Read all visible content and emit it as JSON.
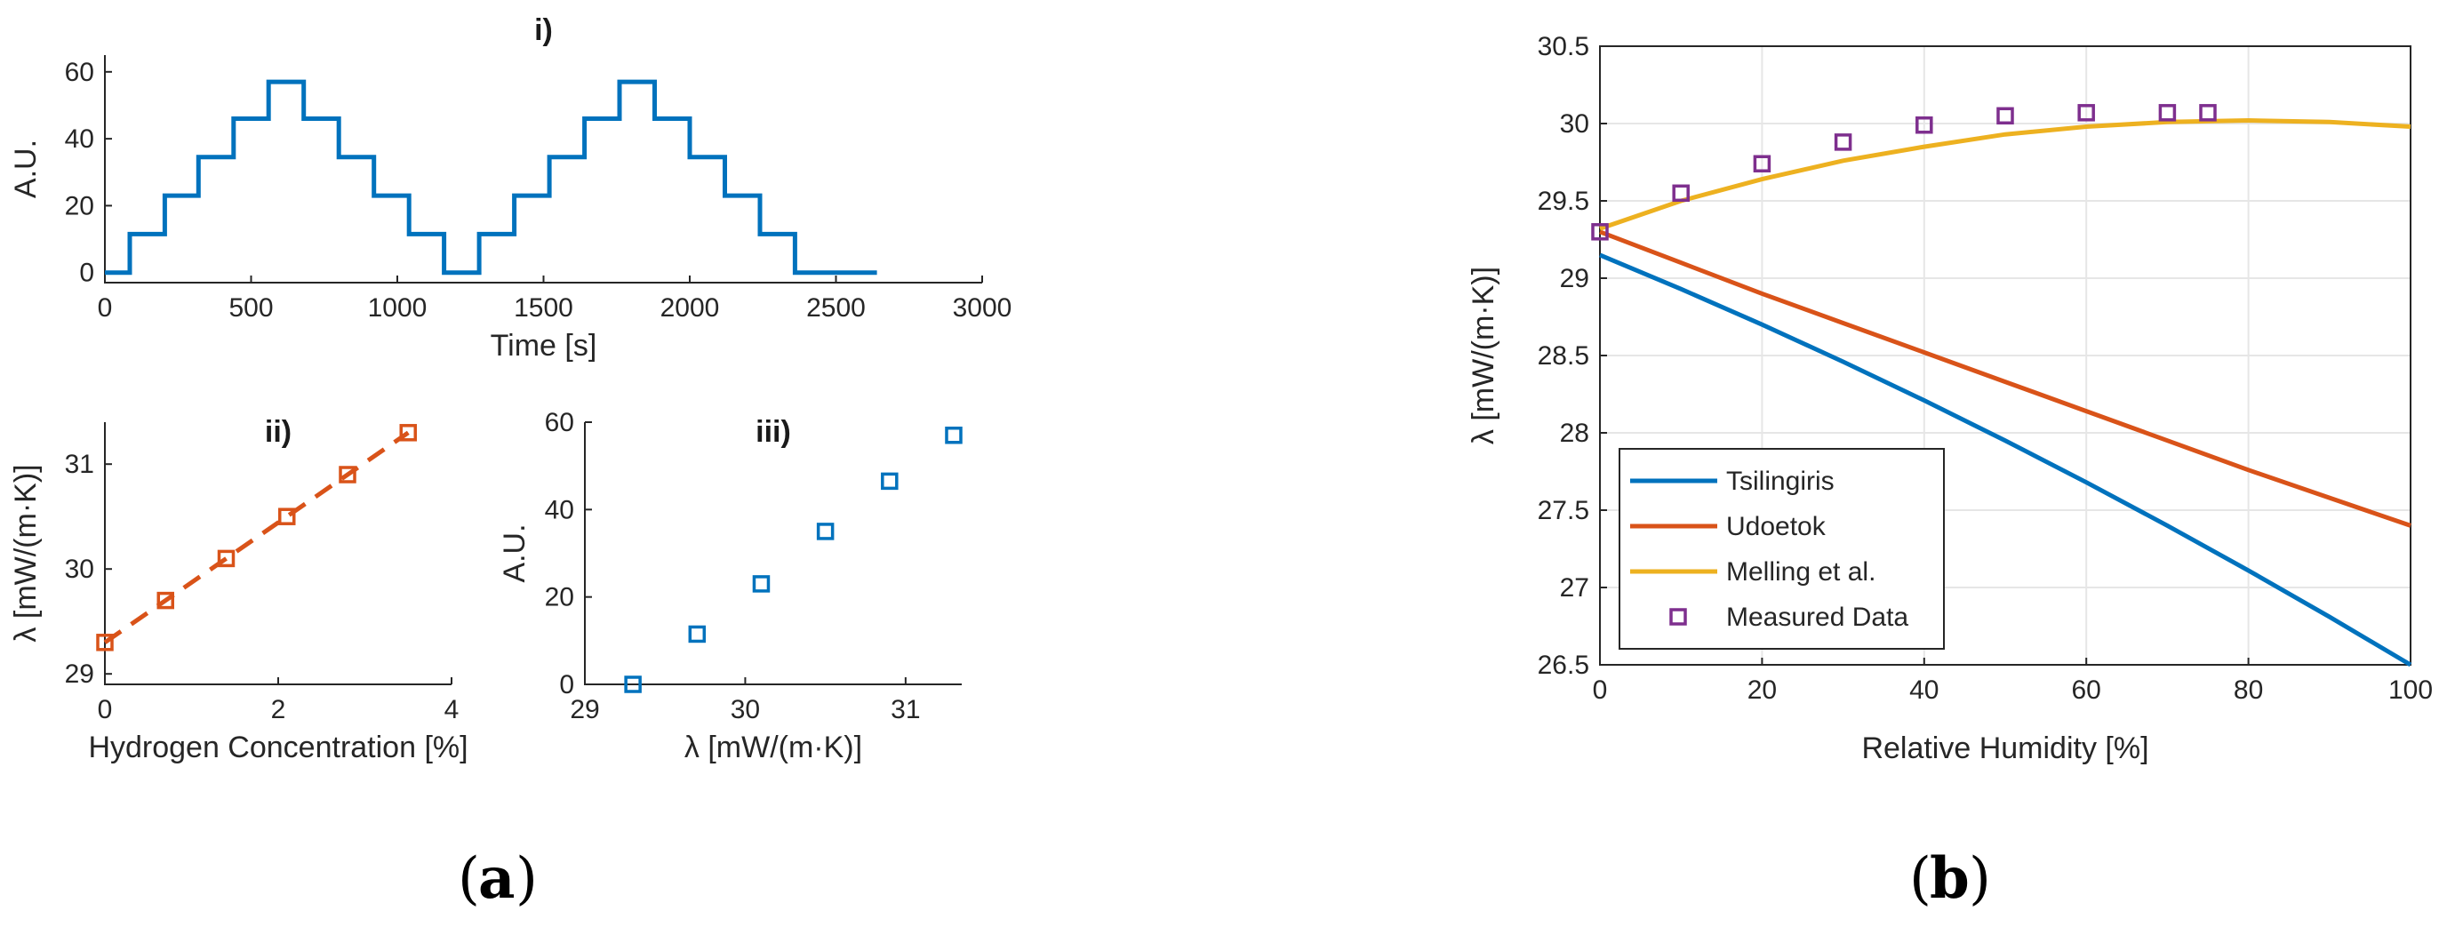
{
  "captions": {
    "a": "a",
    "b": "b"
  },
  "colors": {
    "blue": "#0072BD",
    "orange": "#D95319",
    "yellow": "#EDB120",
    "purple": "#7E2F8E"
  },
  "chart_data": [
    {
      "id": "i",
      "type": "line",
      "title": "i)",
      "xlabel": "Time [s]",
      "ylabel": "A.U.",
      "xlim": [
        0,
        3000
      ],
      "ylim": [
        -3,
        65
      ],
      "xticks": [
        0,
        500,
        1000,
        1500,
        2000,
        2500,
        3000
      ],
      "yticks": [
        0,
        20,
        40,
        60
      ],
      "grid": false,
      "series": [
        {
          "name": "A.U.",
          "color": "#0072BD",
          "x": [
            0,
            85,
            85,
            205,
            205,
            320,
            320,
            440,
            440,
            560,
            560,
            680,
            680,
            800,
            800,
            920,
            920,
            1040,
            1040,
            1160,
            1160,
            1280,
            1280,
            1400,
            1400,
            1520,
            1520,
            1640,
            1640,
            1760,
            1760,
            1880,
            1880,
            2000,
            2000,
            2120,
            2120,
            2240,
            2240,
            2360,
            2360,
            2640
          ],
          "y": [
            0,
            0,
            11.5,
            11.5,
            23,
            23,
            34.5,
            34.5,
            46,
            46,
            57,
            57,
            46,
            46,
            34.5,
            34.5,
            23,
            23,
            11.5,
            11.5,
            0,
            0,
            11.5,
            11.5,
            23,
            23,
            34.5,
            34.5,
            46,
            46,
            57,
            57,
            46,
            46,
            34.5,
            34.5,
            23,
            23,
            11.5,
            11.5,
            0,
            0
          ]
        }
      ]
    },
    {
      "id": "ii",
      "type": "scatter",
      "title": "ii)",
      "xlabel": "Hydrogen Concentration [%]",
      "ylabel": "λ [mW/(m·K)]",
      "xlim": [
        0,
        4
      ],
      "ylim": [
        28.9,
        31.4
      ],
      "xticks": [
        0,
        2,
        4
      ],
      "yticks": [
        29,
        30,
        31
      ],
      "grid": false,
      "series": [
        {
          "name": "Measured",
          "color": "#D95319",
          "marker": "square",
          "x": [
            0,
            0.7,
            1.4,
            2.1,
            2.8,
            3.5
          ],
          "y": [
            29.3,
            29.7,
            30.1,
            30.5,
            30.9,
            31.3
          ]
        },
        {
          "name": "Fit",
          "color": "#D95319",
          "style": "dashed",
          "x": [
            0,
            3.5
          ],
          "y": [
            29.3,
            31.3
          ]
        }
      ]
    },
    {
      "id": "iii",
      "type": "scatter",
      "title": "iii)",
      "xlabel": "λ [mW/(m·K)]",
      "ylabel": "A.U.",
      "xlim": [
        29,
        31.35
      ],
      "ylim": [
        0,
        60
      ],
      "xticks": [
        29,
        30,
        31
      ],
      "yticks": [
        0,
        20,
        40,
        60
      ],
      "grid": false,
      "series": [
        {
          "name": "A.U.",
          "color": "#0072BD",
          "marker": "square",
          "x": [
            29.3,
            29.7,
            30.1,
            30.5,
            30.9,
            31.3
          ],
          "y": [
            0,
            11.5,
            23,
            35,
            46.5,
            57
          ]
        }
      ]
    },
    {
      "id": "b",
      "type": "line",
      "title": "",
      "xlabel": "Relative Humidity [%]",
      "ylabel": "λ [mW/(m·K)]",
      "xlim": [
        0,
        100
      ],
      "ylim": [
        26.5,
        30.5
      ],
      "xticks": [
        0,
        20,
        40,
        60,
        80,
        100
      ],
      "yticks": [
        26.5,
        27,
        27.5,
        28,
        28.5,
        29,
        29.5,
        30,
        30.5
      ],
      "grid": true,
      "legend_position": "bottom-left",
      "series": [
        {
          "name": "Tsilingiris",
          "color": "#0072BD",
          "x": [
            0,
            10,
            20,
            30,
            40,
            50,
            60,
            70,
            80,
            90,
            100
          ],
          "y": [
            29.15,
            28.93,
            28.7,
            28.46,
            28.21,
            27.95,
            27.68,
            27.4,
            27.11,
            26.81,
            26.5
          ]
        },
        {
          "name": "Udoetok",
          "color": "#D95319",
          "x": [
            0,
            10,
            20,
            30,
            40,
            50,
            60,
            70,
            80,
            90,
            100
          ],
          "y": [
            29.3,
            29.1,
            28.9,
            28.71,
            28.52,
            28.33,
            28.14,
            27.95,
            27.76,
            27.58,
            27.4
          ]
        },
        {
          "name": "Melling et al.",
          "color": "#EDB120",
          "x": [
            0,
            10,
            20,
            30,
            40,
            50,
            60,
            70,
            80,
            90,
            100
          ],
          "y": [
            29.32,
            29.5,
            29.64,
            29.76,
            29.85,
            29.93,
            29.98,
            30.01,
            30.02,
            30.01,
            29.98
          ]
        },
        {
          "name": "Measured Data",
          "color": "#7E2F8E",
          "marker": "square",
          "x": [
            0,
            10,
            20,
            30,
            40,
            50,
            60,
            70,
            75
          ],
          "y": [
            29.3,
            29.55,
            29.74,
            29.88,
            29.99,
            30.05,
            30.07,
            30.07,
            30.07
          ]
        }
      ]
    }
  ]
}
